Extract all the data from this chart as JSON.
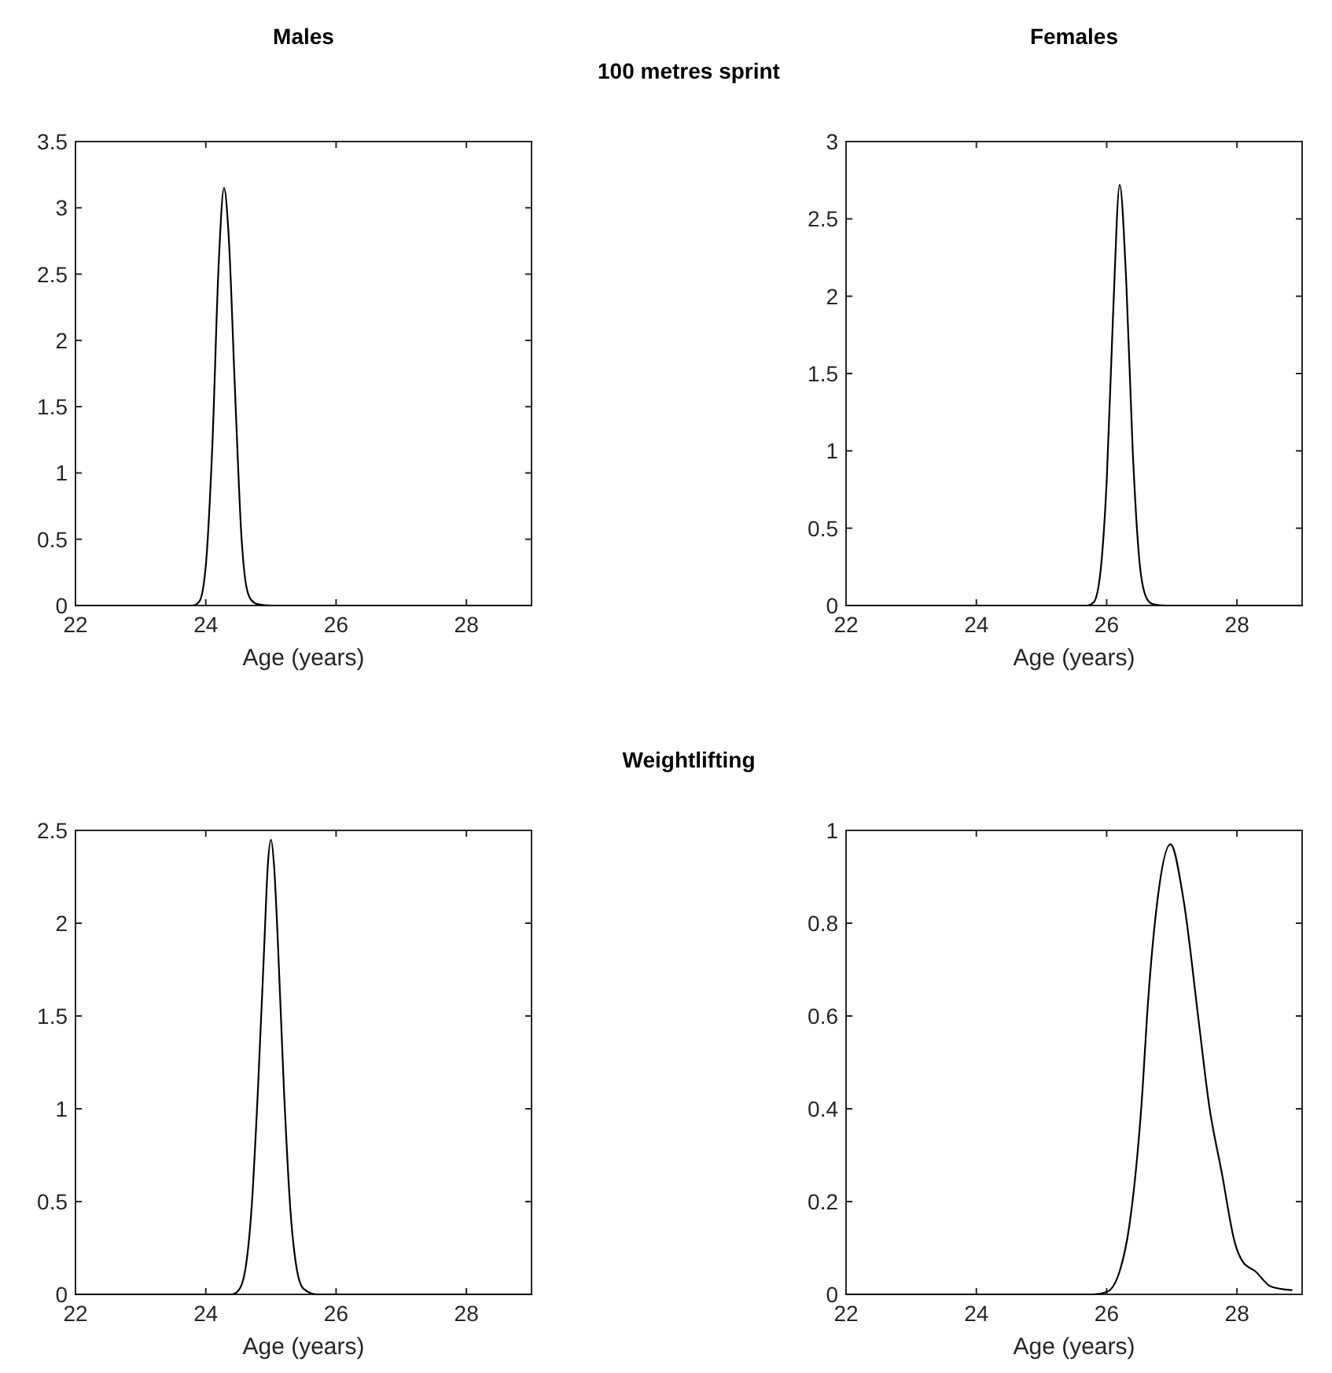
{
  "chart_data": [
    {
      "type": "line",
      "title": "Males",
      "annotations": [
        "100 metres sprint"
      ],
      "xlabel": "Age (years)",
      "color": "#000000",
      "xlim": [
        22,
        29
      ],
      "xticks": [
        22,
        24,
        26,
        28
      ],
      "ylim": [
        0,
        3.5
      ],
      "yticks": [
        0,
        0.5,
        1,
        1.5,
        2,
        2.5,
        3,
        3.5
      ],
      "x": [
        22,
        23.8,
        23.9,
        24.0,
        24.1,
        24.2,
        24.28,
        24.35,
        24.45,
        24.55,
        24.62,
        24.7,
        24.8,
        25,
        29
      ],
      "values": [
        0,
        0,
        0.03,
        0.3,
        1.2,
        2.6,
        3.15,
        2.8,
        1.6,
        0.5,
        0.15,
        0.04,
        0.01,
        0,
        0
      ]
    },
    {
      "type": "line",
      "title": "Females",
      "xlabel": "Age (years)",
      "color": "#000000",
      "xlim": [
        22,
        29
      ],
      "xticks": [
        22,
        24,
        26,
        28
      ],
      "ylim": [
        0,
        3
      ],
      "yticks": [
        0,
        0.5,
        1,
        1.5,
        2,
        2.5,
        3
      ],
      "x": [
        22,
        25.7,
        25.8,
        25.9,
        26.0,
        26.1,
        26.2,
        26.3,
        26.4,
        26.5,
        26.6,
        26.7,
        26.9,
        29
      ],
      "values": [
        0,
        0,
        0.02,
        0.2,
        0.8,
        1.9,
        2.72,
        2.1,
        1.0,
        0.3,
        0.06,
        0.01,
        0,
        0
      ]
    },
    {
      "type": "line",
      "annotations": [
        "Weightlifting"
      ],
      "xlabel": "Age (years)",
      "color": "#000000",
      "xlim": [
        22,
        29
      ],
      "xticks": [
        22,
        24,
        26,
        28
      ],
      "ylim": [
        0,
        2.5
      ],
      "yticks": [
        0,
        0.5,
        1,
        1.5,
        2,
        2.5
      ],
      "x": [
        22,
        24.4,
        24.5,
        24.6,
        24.7,
        24.8,
        24.9,
        24.95,
        25,
        25.05,
        25.1,
        25.2,
        25.3,
        25.4,
        25.5,
        25.7,
        29
      ],
      "values": [
        0,
        0,
        0.02,
        0.12,
        0.45,
        1.1,
        1.9,
        2.3,
        2.45,
        2.3,
        1.95,
        1.1,
        0.45,
        0.13,
        0.03,
        0,
        0
      ]
    },
    {
      "type": "line",
      "xlabel": "Age (years)",
      "color": "#000000",
      "xlim": [
        22,
        29
      ],
      "xticks": [
        22,
        24,
        26,
        28
      ],
      "ylim": [
        0,
        1
      ],
      "yticks": [
        0,
        0.2,
        0.4,
        0.6,
        0.8,
        1
      ],
      "x": [
        22,
        25.8,
        26.0,
        26.2,
        26.35,
        26.55,
        26.62,
        26.78,
        26.98,
        27.18,
        27.42,
        27.57,
        27.77,
        27.97,
        28.09,
        28.28,
        28.52,
        28.84
      ],
      "values": [
        0,
        0,
        0.005,
        0.05,
        0.15,
        0.44,
        0.6,
        0.85,
        0.97,
        0.85,
        0.58,
        0.41,
        0.26,
        0.11,
        0.07,
        0.05,
        0.017,
        0.009
      ]
    }
  ]
}
